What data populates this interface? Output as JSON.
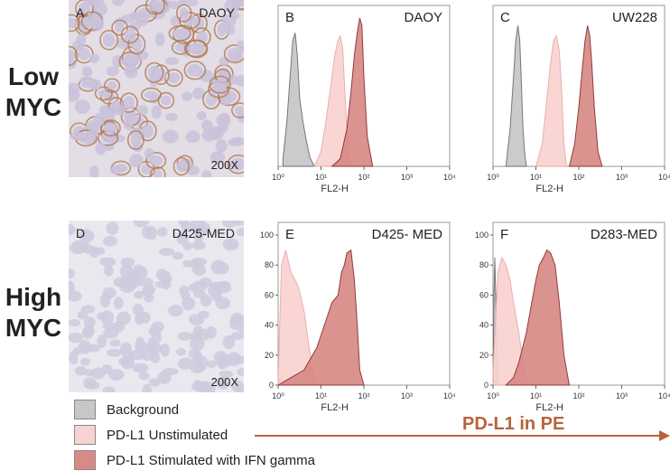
{
  "rows": [
    {
      "label_line1": "Low",
      "label_line2": "MYC"
    },
    {
      "label_line1": "High",
      "label_line2": "MYC"
    }
  ],
  "micrographs": [
    {
      "letter": "A",
      "name": "DAOY",
      "magnification": "200X",
      "stain": "high"
    },
    {
      "letter": "D",
      "name": "D425-MED",
      "magnification": "200X",
      "stain": "low"
    }
  ],
  "colors": {
    "background_fill": "#c7c7c9",
    "background_stroke": "#6b6b6b",
    "unstim_fill": "#f9d3d1",
    "unstim_stroke": "#e9a8a5",
    "stim_fill": "#d98a86",
    "stim_stroke": "#8a2b2b",
    "arrow": "#b8633a"
  },
  "chart_data": [
    {
      "type": "area",
      "letter": "B",
      "title": "DAOY",
      "xlabel": "FL2-H",
      "xscale": "log",
      "xlim": [
        1,
        10000
      ],
      "ylim": [
        0,
        100
      ],
      "xticks": [
        "10⁰",
        "10¹",
        "10²",
        "10³",
        "10⁴"
      ],
      "yticks": [],
      "panel_pos": "topleft",
      "series": [
        {
          "key": "background",
          "x": [
            1.3,
            1.6,
            1.9,
            2.2,
            2.5,
            2.8,
            3.2,
            3.8,
            4.5,
            5.5,
            7
          ],
          "y": [
            5,
            30,
            60,
            85,
            90,
            75,
            45,
            30,
            18,
            6,
            0
          ]
        },
        {
          "key": "unstim",
          "x": [
            7,
            10,
            13,
            17,
            21,
            25,
            28,
            32,
            36,
            42,
            50
          ],
          "y": [
            0,
            10,
            30,
            55,
            75,
            85,
            88,
            80,
            50,
            15,
            0
          ]
        },
        {
          "key": "stim",
          "x": [
            18,
            28,
            40,
            50,
            60,
            70,
            80,
            90,
            100,
            120,
            160
          ],
          "y": [
            0,
            5,
            25,
            50,
            75,
            90,
            100,
            95,
            60,
            20,
            0
          ]
        }
      ]
    },
    {
      "type": "area",
      "letter": "C",
      "title": "UW228",
      "xlabel": "FL2-H",
      "xscale": "log",
      "xlim": [
        1,
        10000
      ],
      "ylim": [
        0,
        100
      ],
      "xticks": [
        "10⁰",
        "10¹",
        "10²",
        "10³",
        "10⁴"
      ],
      "yticks": [],
      "panel_pos": "topright",
      "series": [
        {
          "key": "background",
          "x": [
            2.0,
            2.5,
            3.0,
            3.4,
            3.8,
            4.2,
            4.6,
            5.0,
            5.5,
            6.0
          ],
          "y": [
            0,
            25,
            60,
            85,
            95,
            85,
            55,
            25,
            8,
            0
          ]
        },
        {
          "key": "unstim",
          "x": [
            10,
            14,
            18,
            22,
            26,
            30,
            35,
            40,
            45,
            52
          ],
          "y": [
            0,
            15,
            45,
            70,
            85,
            88,
            78,
            50,
            15,
            0
          ]
        },
        {
          "key": "stim",
          "x": [
            60,
            80,
            100,
            120,
            140,
            160,
            180,
            200,
            230,
            280,
            350
          ],
          "y": [
            0,
            15,
            40,
            65,
            85,
            95,
            88,
            70,
            40,
            10,
            0
          ]
        }
      ]
    },
    {
      "type": "area",
      "letter": "E",
      "title": "D425- MED",
      "xlabel": "FL2-H",
      "xscale": "log",
      "xlim": [
        1,
        10000
      ],
      "ylim": [
        0,
        100
      ],
      "xticks": [
        "10⁰",
        "10¹",
        "10²",
        "10³",
        "10⁴"
      ],
      "yticks": [
        "0",
        "20",
        "40",
        "60",
        "80",
        "100"
      ],
      "panel_pos": "topleft",
      "series": [
        {
          "key": "background",
          "x": [
            1,
            1.1,
            1.2,
            1.3
          ],
          "y": [
            0,
            5,
            3,
            0
          ]
        },
        {
          "key": "unstim",
          "x": [
            1,
            1.2,
            1.5,
            2,
            2.5,
            3,
            4,
            5,
            6,
            7,
            8
          ],
          "y": [
            5,
            80,
            90,
            75,
            70,
            65,
            50,
            30,
            15,
            5,
            0
          ]
        },
        {
          "key": "stim",
          "x": [
            1,
            2,
            4,
            8,
            12,
            18,
            25,
            30,
            35,
            40,
            50,
            60,
            70,
            80,
            100
          ],
          "y": [
            0,
            5,
            10,
            25,
            40,
            55,
            60,
            75,
            80,
            88,
            90,
            70,
            40,
            10,
            0
          ]
        }
      ]
    },
    {
      "type": "area",
      "letter": "F",
      "title": "D283-MED",
      "xlabel": "FL2-H",
      "xscale": "log",
      "xlim": [
        1,
        10000
      ],
      "ylim": [
        0,
        100
      ],
      "xticks": [
        "10⁰",
        "10¹",
        "10²",
        "10³",
        "10⁴"
      ],
      "yticks": [
        "0",
        "20",
        "40",
        "60",
        "80",
        "100"
      ],
      "panel_pos": "topright",
      "series": [
        {
          "key": "background",
          "x": [
            1,
            1.05,
            1.1,
            1.2,
            1.3
          ],
          "y": [
            0,
            60,
            85,
            40,
            0
          ]
        },
        {
          "key": "unstim",
          "x": [
            1,
            1.3,
            1.6,
            2,
            2.5,
            3,
            4,
            5,
            6,
            7
          ],
          "y": [
            10,
            75,
            85,
            80,
            70,
            55,
            35,
            15,
            5,
            0
          ]
        },
        {
          "key": "stim",
          "x": [
            2,
            3,
            4,
            6,
            8,
            10,
            12,
            15,
            18,
            22,
            28,
            35,
            45,
            60
          ],
          "y": [
            0,
            5,
            15,
            35,
            55,
            70,
            80,
            85,
            90,
            88,
            80,
            55,
            20,
            0
          ]
        }
      ]
    }
  ],
  "legend": {
    "items": [
      {
        "key": "background",
        "label": "Background"
      },
      {
        "key": "unstim",
        "label": "PD-L1 Unstimulated"
      },
      {
        "key": "stim",
        "label": "PD-L1 Stimulated with IFN gamma"
      }
    ]
  },
  "arrow": {
    "label": "PD-L1 in PE"
  }
}
